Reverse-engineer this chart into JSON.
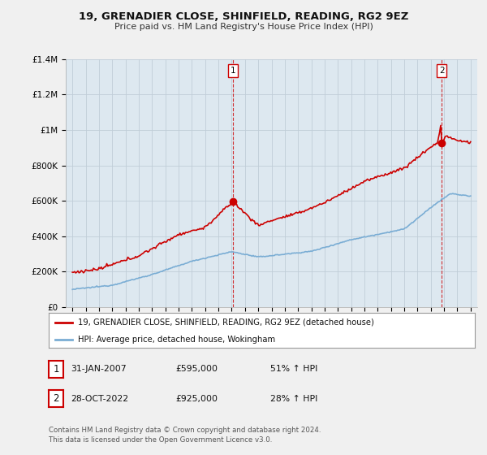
{
  "title": "19, GRENADIER CLOSE, SHINFIELD, READING, RG2 9EZ",
  "subtitle": "Price paid vs. HM Land Registry's House Price Index (HPI)",
  "legend_line1": "19, GRENADIER CLOSE, SHINFIELD, READING, RG2 9EZ (detached house)",
  "legend_line2": "HPI: Average price, detached house, Wokingham",
  "footnote": "Contains HM Land Registry data © Crown copyright and database right 2024.\nThis data is licensed under the Open Government Licence v3.0.",
  "sale1_label": "1",
  "sale1_date": "31-JAN-2007",
  "sale1_price": "£595,000",
  "sale1_hpi": "51% ↑ HPI",
  "sale2_label": "2",
  "sale2_date": "28-OCT-2022",
  "sale2_price": "£925,000",
  "sale2_hpi": "28% ↑ HPI",
  "sale_color": "#cc0000",
  "hpi_color": "#7aadd4",
  "ylim": [
    0,
    1400000
  ],
  "yticks": [
    0,
    200000,
    400000,
    600000,
    800000,
    1000000,
    1200000,
    1400000
  ],
  "ytick_labels": [
    "£0",
    "£200K",
    "£400K",
    "£600K",
    "£800K",
    "£1M",
    "£1.2M",
    "£1.4M"
  ],
  "background_color": "#f0f0f0",
  "plot_bg_color": "#dde8f0",
  "grid_color": "#c0cdd8",
  "sale1_x": 2007.08,
  "sale1_y": 595000,
  "sale2_x": 2022.83,
  "sale2_y": 925000,
  "vline1_x": 2007.08,
  "vline2_x": 2022.83,
  "xmin": 1994.5,
  "xmax": 2025.5
}
